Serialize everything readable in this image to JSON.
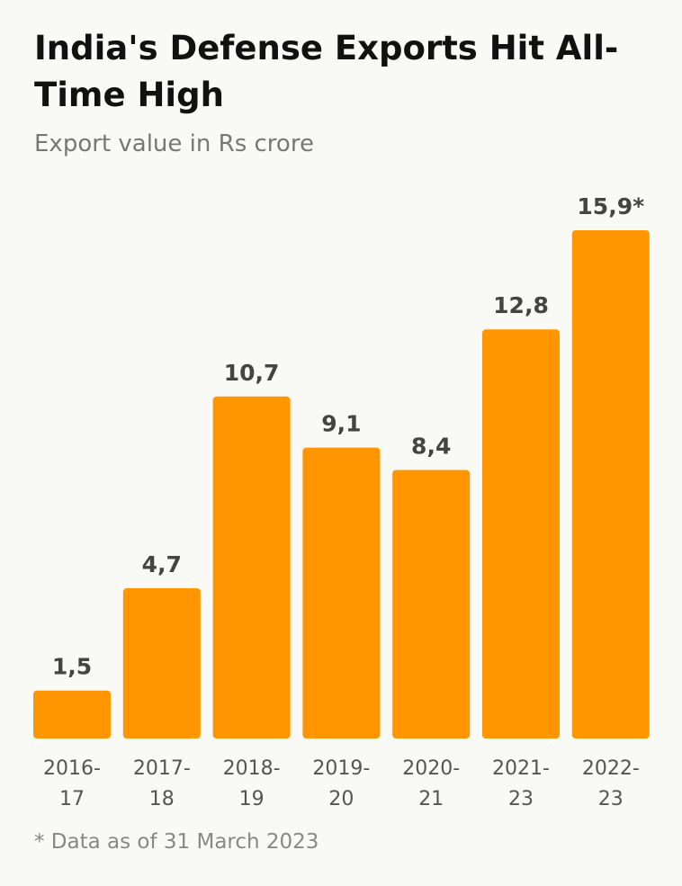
{
  "title": "India's Defense Exports Hit All-Time High",
  "subtitle": "Export value in Rs crore",
  "footnote": "* Data as of 31 March 2023",
  "colors": {
    "bar": "#ff9500",
    "value_label": "#444444",
    "category_label": "#555555"
  },
  "chart_data": {
    "type": "bar",
    "title": "India's Defense Exports Hit All-Time High",
    "subtitle": "Export value in Rs crore",
    "categories": [
      [
        "2016-",
        "17"
      ],
      [
        "2017-",
        "18"
      ],
      [
        "2018-",
        "19"
      ],
      [
        "2019-",
        "20"
      ],
      [
        "2020-",
        "21"
      ],
      [
        "2021-",
        "23"
      ],
      [
        "2022-",
        "23"
      ]
    ],
    "values": [
      1.5,
      4.7,
      10.7,
      9.1,
      8.4,
      12.8,
      15.9
    ],
    "value_labels": [
      "1,5",
      "4,7",
      "10,7",
      "9,1",
      "8,4",
      "12,8",
      "15,9*"
    ],
    "ylim": [
      0,
      15.9
    ],
    "grid": false,
    "legend": "none"
  }
}
